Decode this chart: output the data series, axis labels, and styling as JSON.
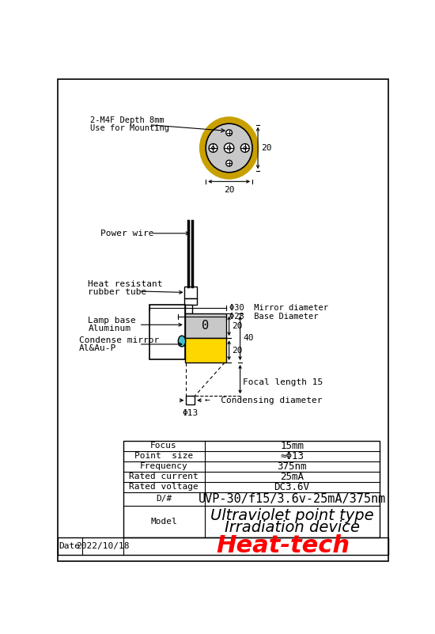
{
  "bg_color": "#ffffff",
  "yellow_color": "#FFD700",
  "gold_ring_color": "#C8A000",
  "cyan_color": "#40C0D0",
  "gray_color": "#C8C8C8",
  "table_rows": [
    [
      "Focus",
      "15mm"
    ],
    [
      "Point  size",
      "≈Φ13"
    ],
    [
      "Frequency",
      "375nm"
    ],
    [
      "Rated current",
      "25mA"
    ],
    [
      "Rated voltage",
      "DC3.6V"
    ],
    [
      "D/#",
      "UVP-30/f15/3.6v-25mA/375nm"
    ],
    [
      "Model",
      "Ultraviolet point type\nIrradiation device"
    ]
  ],
  "date_text": "2022/10/18",
  "heattech_text": "Heat-tech"
}
